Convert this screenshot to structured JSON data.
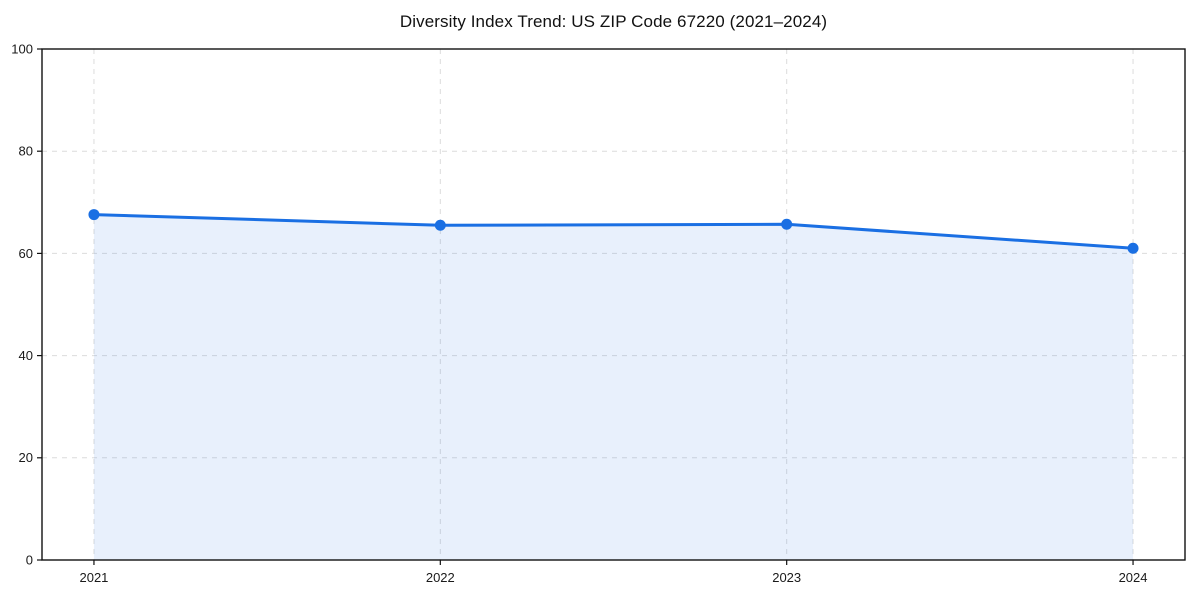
{
  "chart_data": {
    "type": "area",
    "title": "Diversity Index Trend: US ZIP Code 67220 (2021–2024)",
    "x": [
      2021,
      2022,
      2023,
      2024
    ],
    "x_tick_labels": [
      "2021",
      "2022",
      "2023",
      "2024"
    ],
    "series": [
      {
        "name": "Diversity Index",
        "values": [
          67.6,
          65.5,
          65.7,
          61.0
        ]
      }
    ],
    "xlabel": "",
    "ylabel": "",
    "xlim": [
      2020.85,
      2024.15
    ],
    "ylim": [
      0,
      100
    ],
    "yticks": [
      0,
      20,
      40,
      60,
      80,
      100
    ],
    "grid": true,
    "grid_line_style": "dashed",
    "legend_position": "none",
    "marker_shape": "circle",
    "colors": {
      "line": "#1a6fe3",
      "marker": "#1a6fe3",
      "fill": "rgba(26,111,227,0.10)",
      "grid": "#dcdcdc",
      "spine": "#111111",
      "tick_label": "#1a1a1a",
      "title": "#111111",
      "background": "#ffffff"
    }
  }
}
